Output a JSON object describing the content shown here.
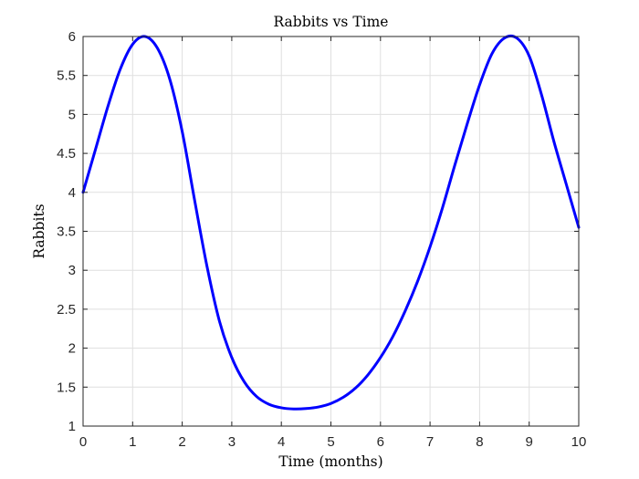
{
  "chart_data": {
    "type": "line",
    "title": "Rabbits vs Time",
    "xlabel": "Time (months)",
    "ylabel": "Rabbits",
    "xlim": [
      0,
      10
    ],
    "ylim": [
      1,
      6
    ],
    "xticks": [
      0,
      1,
      2,
      3,
      4,
      5,
      6,
      7,
      8,
      9,
      10
    ],
    "yticks": [
      1,
      1.5,
      2,
      2.5,
      3,
      3.5,
      4,
      4.5,
      5,
      5.5,
      6
    ],
    "grid": true,
    "series": [
      {
        "color": "#0000ff",
        "x": [
          0,
          0.25,
          0.5,
          0.75,
          1.0,
          1.25,
          1.5,
          1.75,
          2.0,
          2.25,
          2.5,
          2.75,
          3.0,
          3.25,
          3.5,
          3.75,
          4.0,
          4.25,
          4.5,
          4.75,
          5.0,
          5.25,
          5.5,
          5.75,
          6.0,
          6.25,
          6.5,
          6.75,
          7.0,
          7.25,
          7.5,
          7.75,
          8.0,
          8.25,
          8.5,
          8.75,
          9.0,
          9.25,
          9.5,
          9.75,
          10.0
        ],
        "y": [
          4.0,
          4.55,
          5.1,
          5.58,
          5.9,
          6.0,
          5.85,
          5.45,
          4.78,
          3.9,
          3.05,
          2.35,
          1.88,
          1.57,
          1.38,
          1.28,
          1.235,
          1.22,
          1.225,
          1.245,
          1.29,
          1.37,
          1.49,
          1.66,
          1.88,
          2.15,
          2.48,
          2.86,
          3.3,
          3.8,
          4.35,
          4.88,
          5.38,
          5.78,
          5.98,
          5.98,
          5.75,
          5.25,
          4.65,
          4.1,
          3.55
        ]
      }
    ]
  }
}
